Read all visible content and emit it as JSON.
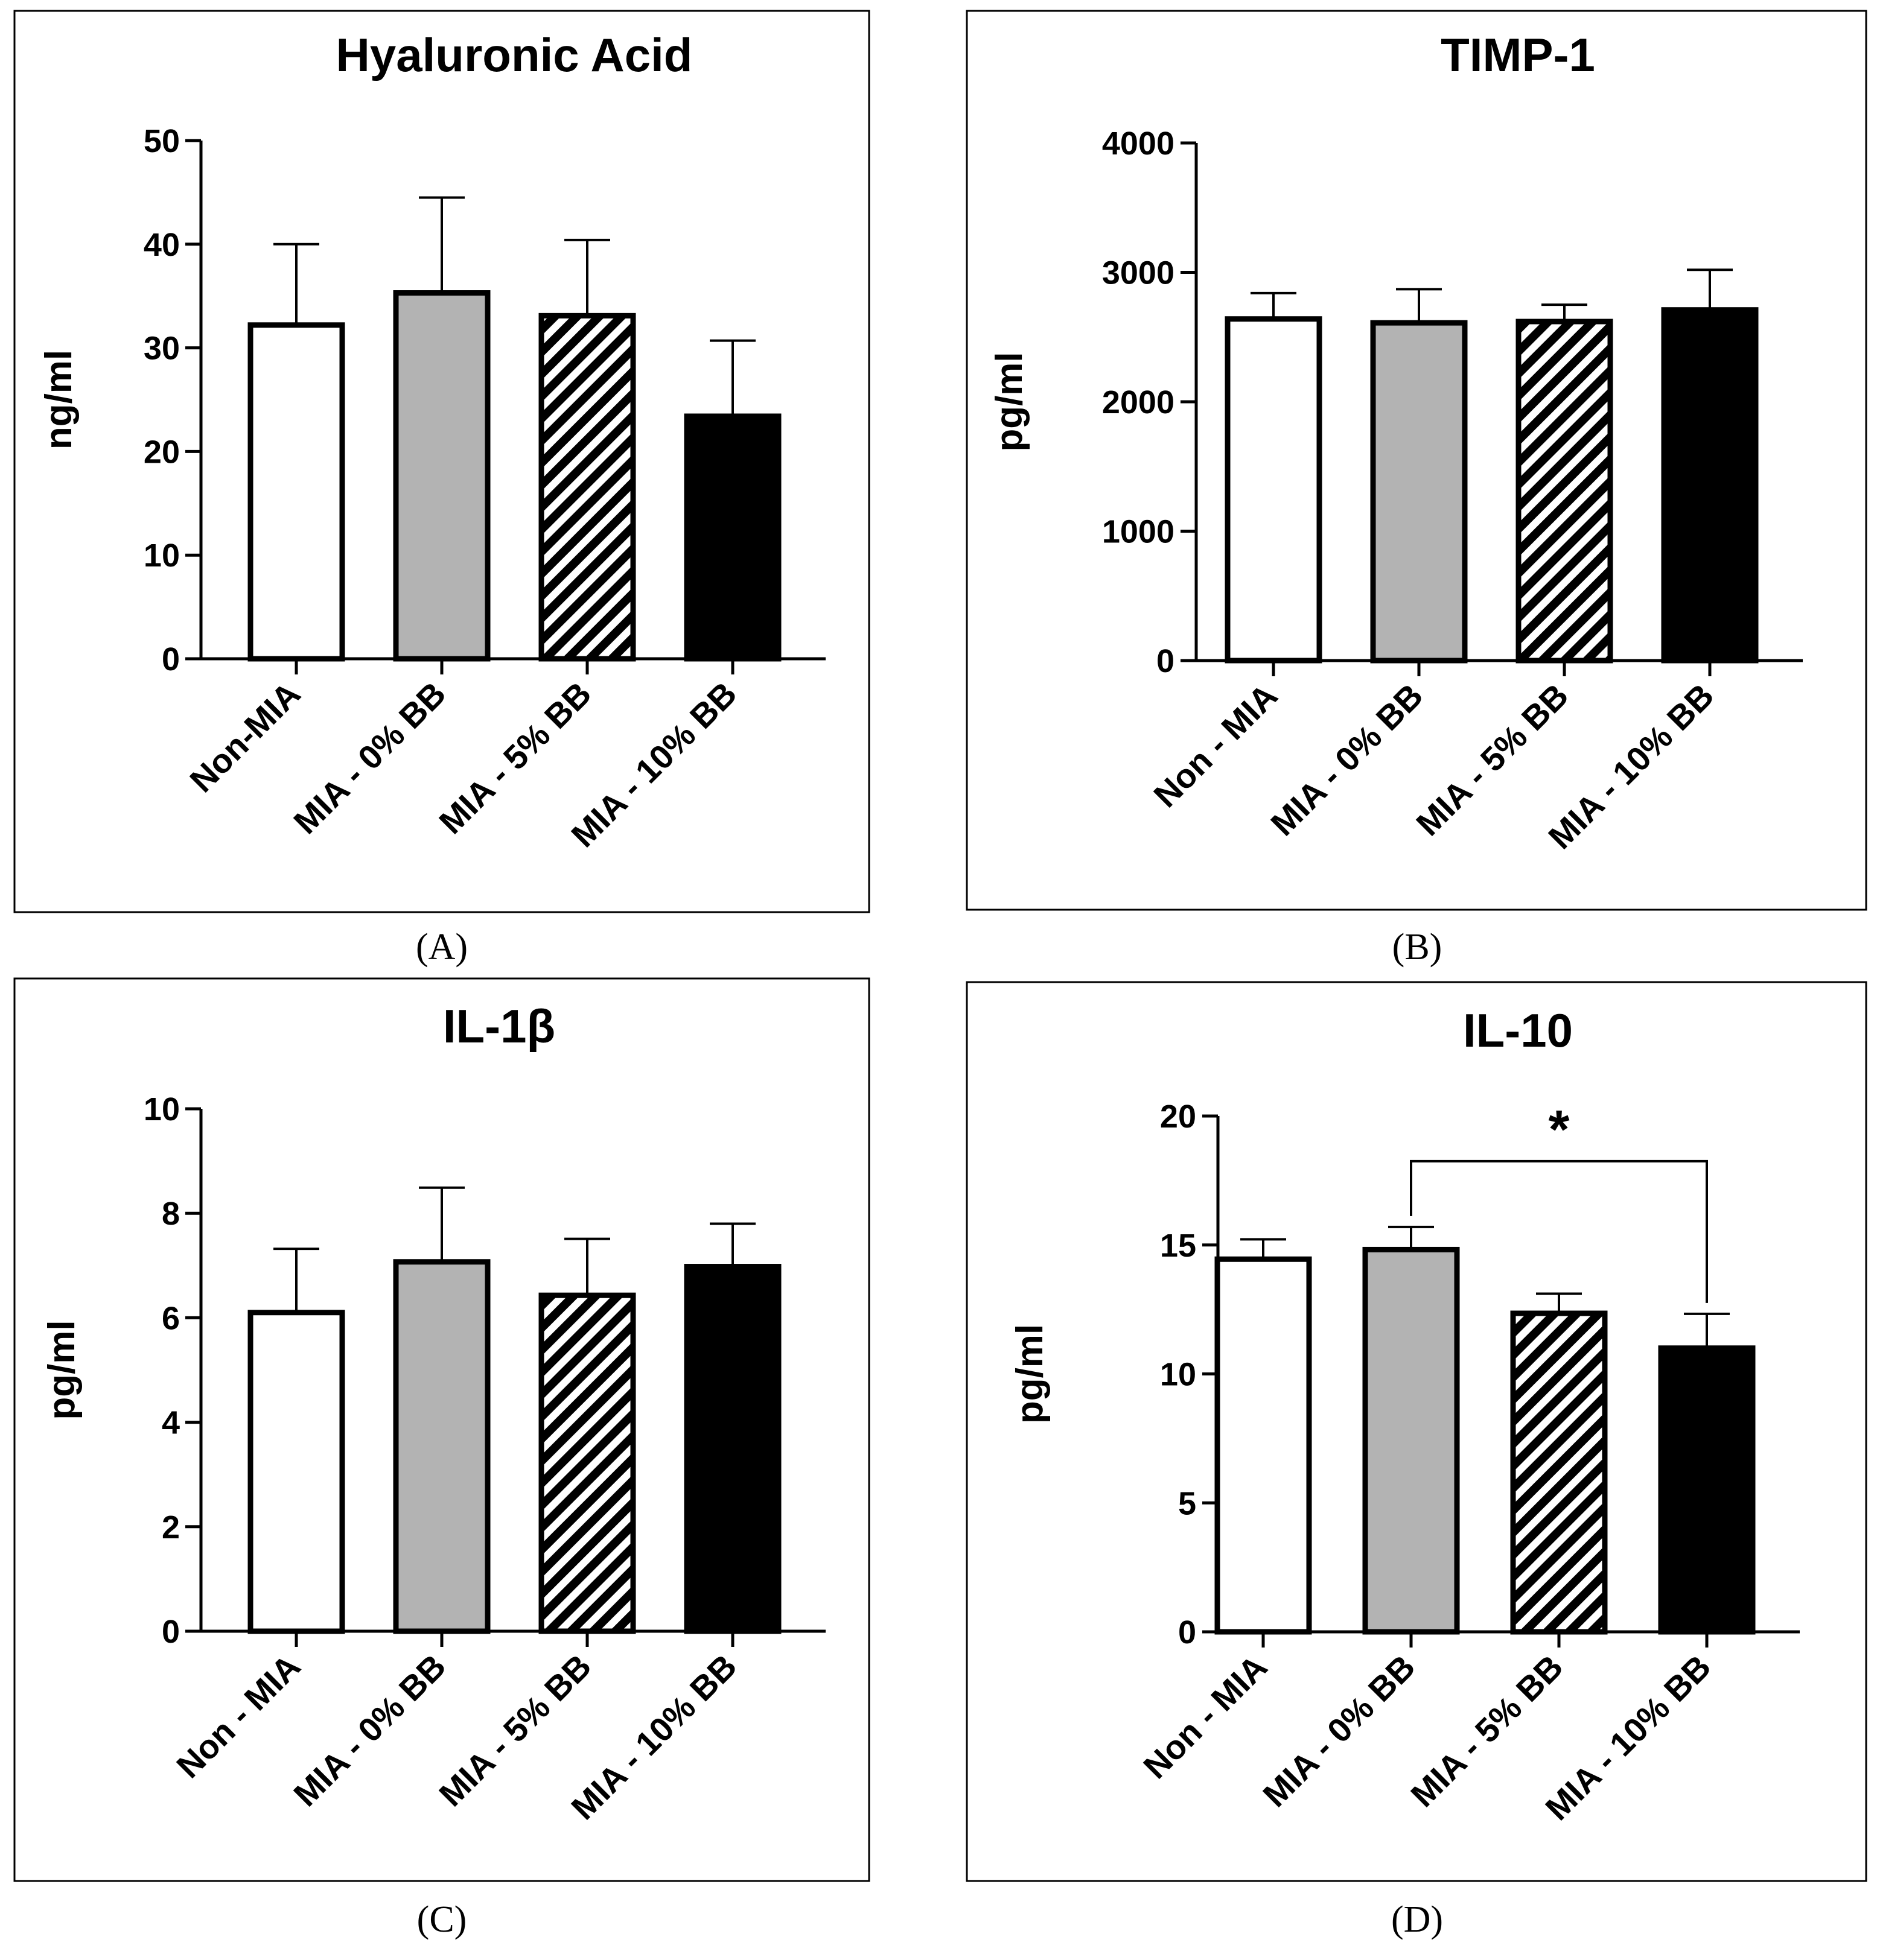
{
  "chart_data": [
    {
      "panel": "A",
      "type": "bar",
      "title": "Hyaluronic Acid",
      "ylabel": "ng/ml",
      "xlabel": "",
      "ylim": [
        0,
        50
      ],
      "yticks": [
        0,
        10,
        20,
        30,
        40,
        50
      ],
      "categories": [
        "Non-MIA",
        "MIA - 0% BB",
        "MIA - 5% BB",
        "MIA - 10% BB"
      ],
      "values": [
        32.2,
        35.3,
        33.1,
        23.4
      ],
      "errors": [
        7.8,
        9.2,
        7.3,
        7.3
      ],
      "fills": [
        "white",
        "gray",
        "hatch",
        "black"
      ],
      "significance": null
    },
    {
      "panel": "B",
      "type": "bar",
      "title": "TIMP-1",
      "ylabel": "pg/ml",
      "xlabel": "",
      "ylim": [
        0,
        4000
      ],
      "yticks": [
        0,
        1000,
        2000,
        3000,
        4000
      ],
      "categories": [
        "Non - MIA",
        "MIA - 0% BB",
        "MIA - 5% BB",
        "MIA - 10% BB"
      ],
      "values": [
        2640,
        2610,
        2620,
        2710
      ],
      "errors": [
        200,
        260,
        130,
        310
      ],
      "fills": [
        "white",
        "gray",
        "hatch",
        "black"
      ],
      "significance": null
    },
    {
      "panel": "C",
      "type": "bar",
      "title": "IL-1β",
      "ylabel": "pg/ml",
      "xlabel": "",
      "ylim": [
        0,
        10
      ],
      "yticks": [
        0,
        2,
        4,
        6,
        8,
        10
      ],
      "categories": [
        "Non - MIA",
        "MIA - 0% BB",
        "MIA - 5% BB",
        "MIA - 10% BB"
      ],
      "values": [
        6.1,
        7.07,
        6.43,
        6.98
      ],
      "errors": [
        1.22,
        1.42,
        1.08,
        0.82
      ],
      "fills": [
        "white",
        "gray",
        "hatch",
        "black"
      ],
      "significance": null
    },
    {
      "panel": "D",
      "type": "bar",
      "title": "IL-10",
      "ylabel": "pg/ml",
      "xlabel": "",
      "ylim": [
        0,
        20
      ],
      "yticks": [
        0,
        5,
        10,
        15,
        20
      ],
      "categories": [
        "Non - MIA",
        "MIA - 0% BB",
        "MIA - 5% BB",
        "MIA - 10% BB"
      ],
      "values": [
        14.45,
        14.82,
        12.35,
        11.0
      ],
      "errors": [
        0.77,
        0.88,
        0.76,
        1.33
      ],
      "fills": [
        "white",
        "gray",
        "hatch",
        "black"
      ],
      "significance": {
        "from": 1,
        "to": 3,
        "label": "*"
      }
    }
  ],
  "panel_labels": [
    "(A)",
    "(B)",
    "(C)",
    "(D)"
  ]
}
